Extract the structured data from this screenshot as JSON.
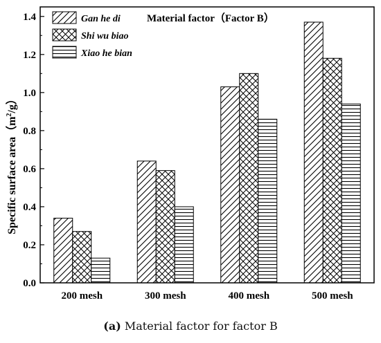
{
  "chart_data": {
    "type": "bar",
    "title": "Material factor（Factor B）",
    "ylabel_main": "Specific surface area（m",
    "ylabel_sup": "2",
    "ylabel_tail": "/g）",
    "categories": [
      "200 mesh",
      "300 mesh",
      "400 mesh",
      "500 mesh"
    ],
    "series": [
      {
        "name": "Gan he di",
        "pattern": "diagonal",
        "values": [
          0.34,
          0.64,
          1.03,
          1.37
        ]
      },
      {
        "name": "Shi wu biao",
        "pattern": "crosshatch",
        "values": [
          0.27,
          0.59,
          1.1,
          1.18
        ]
      },
      {
        "name": "Xiao he bian",
        "pattern": "horizontal",
        "values": [
          0.13,
          0.4,
          0.86,
          0.94
        ]
      }
    ],
    "ylim": [
      0,
      1.45
    ],
    "yticks": [
      "0.0",
      "0.2",
      "0.4",
      "0.6",
      "0.8",
      "1.0",
      "1.2",
      "1.4"
    ],
    "legend_position": "top-left",
    "grid": false
  },
  "caption": {
    "label": "(a)",
    "text": " Material factor for factor B"
  }
}
